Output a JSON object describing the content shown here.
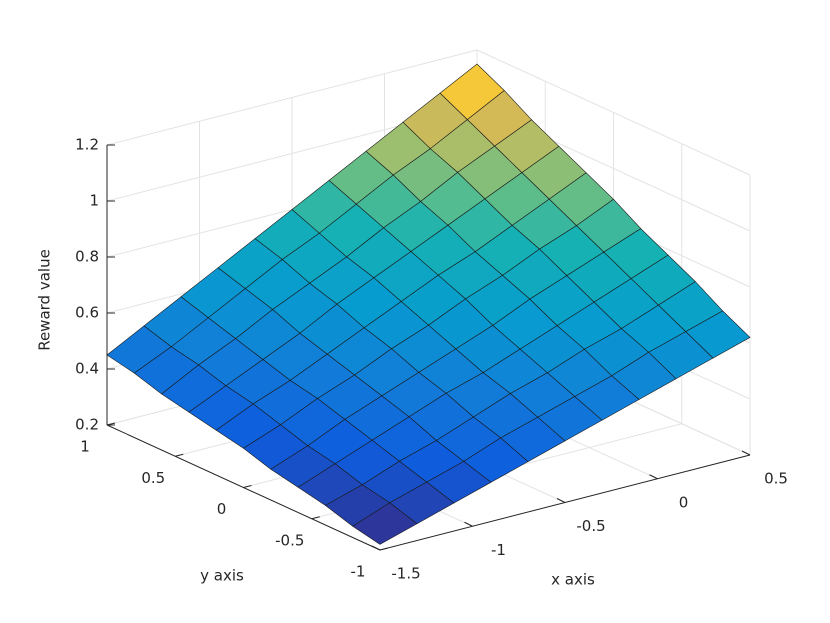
{
  "chart_data": {
    "type": "surface",
    "xlabel": "x axis",
    "ylabel": "y axis",
    "zlabel": "Reward value",
    "x": [
      -1.5,
      -1.3,
      -1.1,
      -0.9,
      -0.7,
      -0.5,
      -0.3,
      -0.1,
      0.1,
      0.3,
      0.5
    ],
    "y": [
      -1,
      -0.8,
      -0.6,
      -0.4,
      -0.2,
      0,
      0.2,
      0.4,
      0.6,
      0.8,
      1
    ],
    "z": [
      [
        0.22,
        0.26,
        0.3,
        0.34,
        0.38,
        0.42,
        0.46,
        0.5,
        0.54,
        0.58,
        0.62
      ],
      [
        0.24,
        0.29,
        0.33,
        0.37,
        0.42,
        0.46,
        0.5,
        0.54,
        0.59,
        0.63,
        0.67
      ],
      [
        0.27,
        0.31,
        0.36,
        0.4,
        0.45,
        0.5,
        0.54,
        0.59,
        0.63,
        0.68,
        0.73
      ],
      [
        0.29,
        0.34,
        0.39,
        0.44,
        0.49,
        0.53,
        0.58,
        0.63,
        0.68,
        0.73,
        0.78
      ],
      [
        0.31,
        0.36,
        0.42,
        0.47,
        0.52,
        0.57,
        0.62,
        0.68,
        0.73,
        0.78,
        0.83
      ],
      [
        0.34,
        0.39,
        0.45,
        0.5,
        0.56,
        0.61,
        0.67,
        0.72,
        0.78,
        0.83,
        0.89
      ],
      [
        0.36,
        0.42,
        0.47,
        0.53,
        0.59,
        0.65,
        0.71,
        0.76,
        0.82,
        0.88,
        0.94
      ],
      [
        0.38,
        0.44,
        0.5,
        0.56,
        0.63,
        0.69,
        0.75,
        0.81,
        0.87,
        0.93,
        0.99
      ],
      [
        0.4,
        0.47,
        0.53,
        0.6,
        0.66,
        0.72,
        0.79,
        0.85,
        0.92,
        0.98,
        1.04
      ],
      [
        0.43,
        0.49,
        0.56,
        0.63,
        0.7,
        0.76,
        0.83,
        0.9,
        0.96,
        1.03,
        1.1
      ],
      [
        0.45,
        0.52,
        0.59,
        0.66,
        0.73,
        0.8,
        0.87,
        0.94,
        1.01,
        1.08,
        1.15
      ]
    ],
    "xlim": [
      -1.5,
      0.5
    ],
    "xticks": [
      -1.5,
      -1,
      -0.5,
      0,
      0.5
    ],
    "ylim": [
      -1,
      1
    ],
    "yticks": [
      -1,
      -0.5,
      0,
      0.5,
      1
    ],
    "zlim": [
      0.2,
      1.2
    ],
    "zticks": [
      0.2,
      0.4,
      0.6,
      0.8,
      1,
      1.2
    ],
    "grid": true,
    "colormap": "parula"
  }
}
